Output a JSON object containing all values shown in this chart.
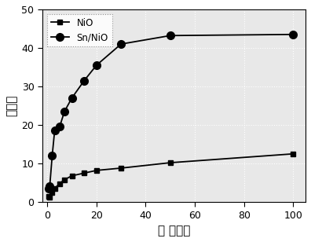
{
  "nio_x": [
    0.5,
    1,
    2,
    3,
    5,
    7,
    10,
    15,
    20,
    30,
    50,
    100
  ],
  "nio_y": [
    1.5,
    1.2,
    2.5,
    3.5,
    4.8,
    5.8,
    6.8,
    7.5,
    8.2,
    8.8,
    10.2,
    12.5
  ],
  "snnio_x": [
    0.5,
    1,
    2,
    3,
    5,
    7,
    10,
    15,
    20,
    30,
    50,
    100
  ],
  "snnio_y": [
    3.5,
    4.0,
    12.0,
    18.5,
    19.5,
    23.5,
    27.0,
    31.5,
    35.5,
    41.0,
    43.2,
    43.5
  ],
  "ylim": [
    0,
    50
  ],
  "xlim": [
    -2,
    105
  ],
  "yticks": [
    0,
    10,
    20,
    30,
    40,
    50
  ],
  "xticks": [
    0,
    20,
    40,
    60,
    80,
    100
  ],
  "ylabel": "灵敏度",
  "xlabel": "气 体浓度",
  "legend_nio": "NiO",
  "legend_snnio": "Sn/NiO",
  "bg_color": "#e8e8e8",
  "grid_color": "#ffffff",
  "grid_style": ":",
  "line_width": 1.3,
  "marker_size_sq": 5,
  "marker_size_ci": 7
}
